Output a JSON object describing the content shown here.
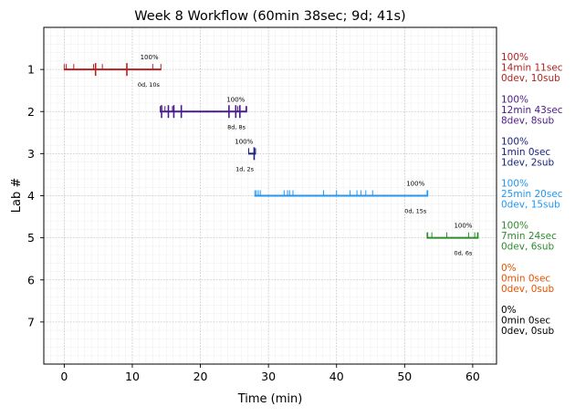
{
  "chart_data": {
    "type": "timeline",
    "title": "Week 8 Workflow (60min 38sec; 9d; 41s)",
    "xlabel": "Time (min)",
    "ylabel": "Lab #",
    "xlim": [
      -3,
      63.5
    ],
    "ylim": [
      8,
      0
    ],
    "xticks": [
      0,
      10,
      20,
      30,
      40,
      50,
      60
    ],
    "yticks": [
      1,
      2,
      3,
      4,
      5,
      6,
      7
    ],
    "grid": true,
    "series": [
      {
        "lab": 1,
        "color": "#b22222",
        "start": 0.0,
        "end": 14.2,
        "top_label": "100%",
        "top_label_x": 12.5,
        "bottom_label": "0d, 10s",
        "bottom_label_x": 12.4,
        "events_major": [
          4.6,
          9.2
        ],
        "events_minor": [
          0.3,
          1.4,
          4.3,
          5.6,
          13.0
        ],
        "side_lines": [
          "100%",
          "14min 11sec",
          "0dev, 10sub"
        ]
      },
      {
        "lab": 2,
        "color": "#4b1a8a",
        "start": 14.1,
        "end": 26.8,
        "top_label": "100%",
        "top_label_x": 25.2,
        "bottom_label": "8d, 8s",
        "bottom_label_x": 25.3,
        "events_major": [
          14.3,
          15.3,
          16.1,
          17.2,
          24.2,
          25.2,
          25.8
        ],
        "events_minor": [
          14.8,
          15.9,
          25.5,
          26.7
        ],
        "side_lines": [
          "100%",
          "12min 43sec",
          "8dev, 8sub"
        ]
      },
      {
        "lab": 3,
        "color": "#1a237e",
        "start": 27.1,
        "end": 28.1,
        "top_label": "100%",
        "top_label_x": 26.4,
        "bottom_label": "1d, 2s",
        "bottom_label_x": 26.5,
        "events_major": [
          27.9
        ],
        "events_minor": [
          27.9
        ],
        "side_lines": [
          "100%",
          "1min 0sec",
          "1dev, 2sub"
        ]
      },
      {
        "lab": 4,
        "color": "#2196f3",
        "start": 28.0,
        "end": 53.4,
        "top_label": "100%",
        "top_label_x": 51.6,
        "bottom_label": "0d, 15s",
        "bottom_label_x": 51.6,
        "events_major": [],
        "events_minor": [
          28.2,
          28.5,
          28.8,
          32.3,
          32.8,
          33.1,
          33.6,
          38.1,
          40.0,
          42.0,
          43.0,
          43.6,
          44.3,
          45.3,
          53.3
        ],
        "side_lines": [
          "100%",
          "25min 20sec",
          "0dev, 15sub"
        ]
      },
      {
        "lab": 5,
        "color": "#2e8b2e",
        "start": 53.3,
        "end": 60.8,
        "top_label": "100%",
        "top_label_x": 58.6,
        "bottom_label": "0d, 6s",
        "bottom_label_x": 58.6,
        "events_major": [],
        "events_minor": [
          53.4,
          54.0,
          56.2,
          59.4,
          60.3,
          60.7
        ],
        "side_lines": [
          "100%",
          "7min 24sec",
          "0dev, 6sub"
        ]
      },
      {
        "lab": 6,
        "color": "#e65100",
        "side_lines": [
          "0%",
          "0min 0sec",
          "0dev, 0sub"
        ]
      },
      {
        "lab": 7,
        "color": "#000000",
        "side_lines": [
          "0%",
          "0min 0sec",
          "0dev, 0sub"
        ]
      }
    ]
  }
}
